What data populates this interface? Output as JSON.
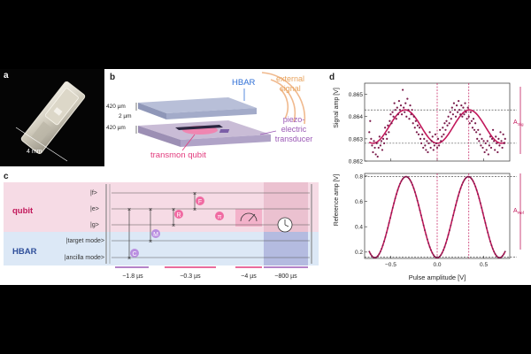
{
  "colors": {
    "magenta": "#c2185b",
    "hbar_blue": "#2f6fd6",
    "signal_orange": "#e8a25c",
    "qubit_pink": "#e23b7d",
    "piezo_purple": "#9b59b6",
    "qubit_band": "#f6dbe5",
    "hbar_band": "#dce8f6",
    "gate_pink": "#f06aa2",
    "gate_purple": "#b98ee0",
    "plot_point": "#7a1a4a"
  },
  "panel_a": {
    "letter": "a",
    "scale_label": "4 mm"
  },
  "panel_b": {
    "letter": "b",
    "hbar_label": "HBAR",
    "thickness_top": "420 µm",
    "gap": "2 µm",
    "thickness_bottom": "420 µm",
    "external_signal": [
      "external",
      "signal"
    ],
    "transmon_label": "transmon qubit",
    "piezo_label": [
      "piezo-",
      "electric",
      "transducer"
    ]
  },
  "panel_c": {
    "letter": "c",
    "qubit_label": "qubit",
    "hbar_label": "HBAR",
    "levels": [
      "|f>",
      "|e>",
      "|g>"
    ],
    "modes": [
      "|target mode>",
      "|ancilla mode>"
    ],
    "gates": {
      "c": "C",
      "m": "M",
      "r": "R",
      "f": "F",
      "pi": "π"
    },
    "durations": [
      "~1.8 µs",
      "~0.3 µs",
      "~4 µs",
      "~800 µs"
    ]
  },
  "panel_d": {
    "letter": "d",
    "top_ylabel": "Signal amp [V]",
    "bottom_ylabel": "Reference amp [V]",
    "xlabel": "Pulse amplitude [V]",
    "amp_top_label": "A",
    "amp_top_sub": "Sig",
    "amp_bottom_label": "A",
    "amp_bottom_sub": "Ref"
  },
  "chart_data": [
    {
      "type": "scatter",
      "xlabel": "Pulse amplitude [V]",
      "ylabel": "Signal amp [V]",
      "xlim": [
        -0.78,
        0.78
      ],
      "ylim": [
        0.862,
        0.8655
      ],
      "yticks": [
        0.862,
        0.863,
        0.864,
        0.865
      ],
      "ytick_labels": [
        "0.862",
        "0.863",
        "0.864",
        "0.865"
      ],
      "fit": {
        "offset": 0.86355,
        "amplitude": 0.00075,
        "period": 0.69,
        "phase_shift": 0.0
      },
      "points": [
        [
          -0.73,
          0.8633
        ],
        [
          -0.72,
          0.8638
        ],
        [
          -0.71,
          0.863
        ],
        [
          -0.7,
          0.8627
        ],
        [
          -0.69,
          0.8624
        ],
        [
          -0.68,
          0.8629
        ],
        [
          -0.67,
          0.8626
        ],
        [
          -0.66,
          0.8623
        ],
        [
          -0.65,
          0.8628
        ],
        [
          -0.64,
          0.8622
        ],
        [
          -0.63,
          0.8626
        ],
        [
          -0.62,
          0.8631
        ],
        [
          -0.61,
          0.8627
        ],
        [
          -0.6,
          0.8629
        ],
        [
          -0.59,
          0.8625
        ],
        [
          -0.58,
          0.863
        ],
        [
          -0.57,
          0.8628
        ],
        [
          -0.56,
          0.8635
        ],
        [
          -0.55,
          0.8632
        ],
        [
          -0.54,
          0.863
        ],
        [
          -0.53,
          0.8636
        ],
        [
          -0.52,
          0.8633
        ],
        [
          -0.51,
          0.8638
        ],
        [
          -0.5,
          0.8641
        ],
        [
          -0.49,
          0.8637
        ],
        [
          -0.48,
          0.8642
        ],
        [
          -0.47,
          0.864
        ],
        [
          -0.46,
          0.8646
        ],
        [
          -0.45,
          0.8643
        ],
        [
          -0.44,
          0.8639
        ],
        [
          -0.43,
          0.8644
        ],
        [
          -0.42,
          0.8641
        ],
        [
          -0.41,
          0.8647
        ],
        [
          -0.4,
          0.8643
        ],
        [
          -0.39,
          0.8645
        ],
        [
          -0.38,
          0.8641
        ],
        [
          -0.37,
          0.8652
        ],
        [
          -0.36,
          0.8644
        ],
        [
          -0.35,
          0.8642
        ],
        [
          -0.34,
          0.8646
        ],
        [
          -0.33,
          0.864
        ],
        [
          -0.32,
          0.8648
        ],
        [
          -0.31,
          0.8643
        ],
        [
          -0.3,
          0.8639
        ],
        [
          -0.29,
          0.8645
        ],
        [
          -0.28,
          0.8641
        ],
        [
          -0.27,
          0.8643
        ],
        [
          -0.26,
          0.8637
        ],
        [
          -0.25,
          0.864
        ],
        [
          -0.24,
          0.8635
        ],
        [
          -0.23,
          0.8638
        ],
        [
          -0.22,
          0.8633
        ],
        [
          -0.21,
          0.8636
        ],
        [
          -0.2,
          0.8632
        ],
        [
          -0.19,
          0.8635
        ],
        [
          -0.18,
          0.863
        ],
        [
          -0.17,
          0.8628
        ],
        [
          -0.16,
          0.8632
        ],
        [
          -0.15,
          0.8626
        ],
        [
          -0.14,
          0.863
        ],
        [
          -0.13,
          0.8627
        ],
        [
          -0.12,
          0.8625
        ],
        [
          -0.11,
          0.8629
        ],
        [
          -0.1,
          0.8624
        ],
        [
          -0.09,
          0.8628
        ],
        [
          -0.08,
          0.8633
        ],
        [
          -0.07,
          0.8626
        ],
        [
          -0.06,
          0.8629
        ],
        [
          -0.05,
          0.8631
        ],
        [
          -0.04,
          0.8625
        ],
        [
          -0.03,
          0.8627
        ],
        [
          -0.02,
          0.8632
        ],
        [
          -0.01,
          0.8628
        ],
        [
          0.0,
          0.8626
        ],
        [
          0.01,
          0.863
        ],
        [
          0.02,
          0.8627
        ],
        [
          0.03,
          0.8634
        ],
        [
          0.04,
          0.8629
        ],
        [
          0.05,
          0.8631
        ],
        [
          0.06,
          0.8635
        ],
        [
          0.07,
          0.8632
        ],
        [
          0.08,
          0.8637
        ],
        [
          0.09,
          0.8634
        ],
        [
          0.1,
          0.8638
        ],
        [
          0.11,
          0.8636
        ],
        [
          0.12,
          0.864
        ],
        [
          0.13,
          0.8637
        ],
        [
          0.14,
          0.8642
        ],
        [
          0.15,
          0.8639
        ],
        [
          0.16,
          0.8644
        ],
        [
          0.17,
          0.8641
        ],
        [
          0.18,
          0.8646
        ],
        [
          0.19,
          0.8643
        ],
        [
          0.2,
          0.864
        ],
        [
          0.21,
          0.8645
        ],
        [
          0.22,
          0.8642
        ],
        [
          0.23,
          0.8647
        ],
        [
          0.24,
          0.8643
        ],
        [
          0.25,
          0.8641
        ],
        [
          0.26,
          0.8645
        ],
        [
          0.27,
          0.864
        ],
        [
          0.28,
          0.8644
        ],
        [
          0.29,
          0.8641
        ],
        [
          0.3,
          0.8646
        ],
        [
          0.31,
          0.8642
        ],
        [
          0.32,
          0.8639
        ],
        [
          0.33,
          0.8644
        ],
        [
          0.34,
          0.864
        ],
        [
          0.35,
          0.8637
        ],
        [
          0.36,
          0.8642
        ],
        [
          0.37,
          0.8638
        ],
        [
          0.38,
          0.8635
        ],
        [
          0.39,
          0.8639
        ],
        [
          0.4,
          0.8634
        ],
        [
          0.41,
          0.8637
        ],
        [
          0.42,
          0.8633
        ],
        [
          0.43,
          0.863
        ],
        [
          0.44,
          0.8634
        ],
        [
          0.45,
          0.8629
        ],
        [
          0.46,
          0.8632
        ],
        [
          0.47,
          0.8627
        ],
        [
          0.48,
          0.863
        ],
        [
          0.49,
          0.8626
        ],
        [
          0.5,
          0.8629
        ],
        [
          0.51,
          0.8624
        ],
        [
          0.52,
          0.8628
        ],
        [
          0.53,
          0.8625
        ],
        [
          0.54,
          0.8629
        ],
        [
          0.55,
          0.8623
        ],
        [
          0.56,
          0.8627
        ],
        [
          0.57,
          0.8631
        ],
        [
          0.58,
          0.8626
        ],
        [
          0.59,
          0.863
        ],
        [
          0.6,
          0.8634
        ],
        [
          0.61,
          0.8629
        ],
        [
          0.62,
          0.8625
        ],
        [
          0.63,
          0.8631
        ],
        [
          0.64,
          0.8628
        ],
        [
          0.65,
          0.8624
        ],
        [
          0.66,
          0.863
        ],
        [
          0.67,
          0.8627
        ],
        [
          0.68,
          0.8633
        ],
        [
          0.69,
          0.8629
        ],
        [
          0.7,
          0.8626
        ],
        [
          0.71,
          0.8632
        ],
        [
          0.72,
          0.8628
        ],
        [
          0.73,
          0.863
        ]
      ],
      "ref_lines": [
        0.8643,
        0.8628
      ],
      "marker_lines_x": [
        0.0,
        0.34
      ]
    },
    {
      "type": "line",
      "xlabel": "Pulse amplitude [V]",
      "ylabel": "Reference amp [V]",
      "xlim": [
        -0.78,
        0.78
      ],
      "ylim": [
        0.15,
        0.82
      ],
      "yticks": [
        0.2,
        0.4,
        0.6,
        0.8
      ],
      "ytick_labels": [
        "0.2",
        "0.4",
        "0.6",
        "0.8"
      ],
      "xticks": [
        -0.5,
        0.0,
        0.5
      ],
      "xtick_labels": [
        "−0.5",
        "0.0",
        "0.5"
      ],
      "fit": {
        "offset": 0.475,
        "amplitude": 0.32,
        "period": 0.67,
        "phase_shift": 0.0
      },
      "ref_lines": [
        0.795,
        0.16
      ],
      "marker_lines_x": [
        0.0,
        0.34
      ]
    }
  ]
}
